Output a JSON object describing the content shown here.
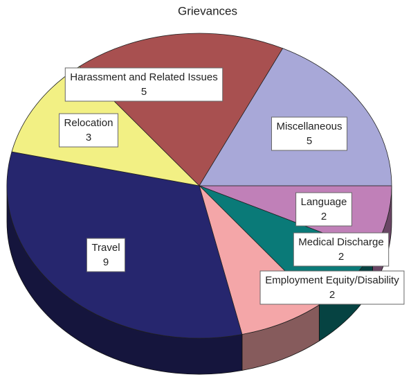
{
  "chart_data": {
    "type": "pie",
    "title": "Grievances",
    "categories": [
      "Language",
      "Medical Discharge",
      "Employment Equity/Disability",
      "Travel",
      "Relocation",
      "Harassment and Related Issues",
      "Miscellaneous"
    ],
    "values": [
      2,
      2,
      2,
      9,
      3,
      5,
      5
    ],
    "colors": [
      "#c080b8",
      "#0a7a78",
      "#f4a6a8",
      "#26266e",
      "#f2f084",
      "#a85050",
      "#a8a8d8"
    ]
  }
}
